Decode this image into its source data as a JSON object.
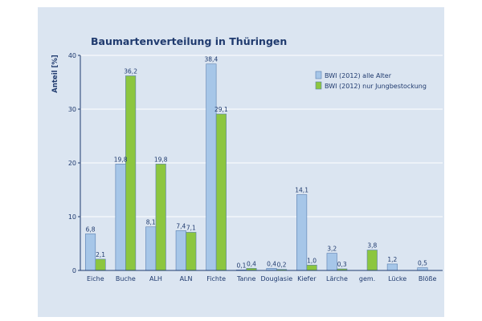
{
  "chart_data": {
    "type": "bar",
    "title": "Baumartenverteilung in Thüringen",
    "ylabel": "Anteil [%]",
    "xlabel": "",
    "ylim": [
      0,
      40
    ],
    "yticks": [
      0,
      10,
      20,
      30,
      40
    ],
    "grid": true,
    "legend_position": "top-right",
    "categories": [
      "Eiche",
      "Buche",
      "ALH",
      "ALN",
      "Fichte",
      "Tanne",
      "Douglasie",
      "Kiefer",
      "Lärche",
      "gem.",
      "Lücke",
      "Blöße"
    ],
    "series": [
      {
        "name": "BWI (2012) alle Alter",
        "color": "#a6c6e8",
        "values": [
          6.8,
          19.8,
          8.1,
          7.4,
          38.4,
          0.1,
          0.4,
          14.1,
          3.2,
          null,
          1.2,
          0.5
        ],
        "labels": [
          "6,8",
          "19,8",
          "8,1",
          "7,4",
          "38,4",
          "0,1",
          "0,4",
          "14,1",
          "3,2",
          "",
          "1,2",
          "0,5"
        ]
      },
      {
        "name": "BWI (2012) nur Jungbestockung",
        "color": "#8cc63f",
        "values": [
          2.1,
          36.2,
          19.8,
          7.1,
          29.1,
          0.4,
          0.2,
          1.0,
          0.3,
          3.8,
          null,
          null
        ],
        "labels": [
          "2,1",
          "36,2",
          "19,8",
          "7,1",
          "29,1",
          "0,4",
          "0,2",
          "1,0",
          "0,3",
          "3,8",
          "",
          ""
        ]
      }
    ]
  }
}
